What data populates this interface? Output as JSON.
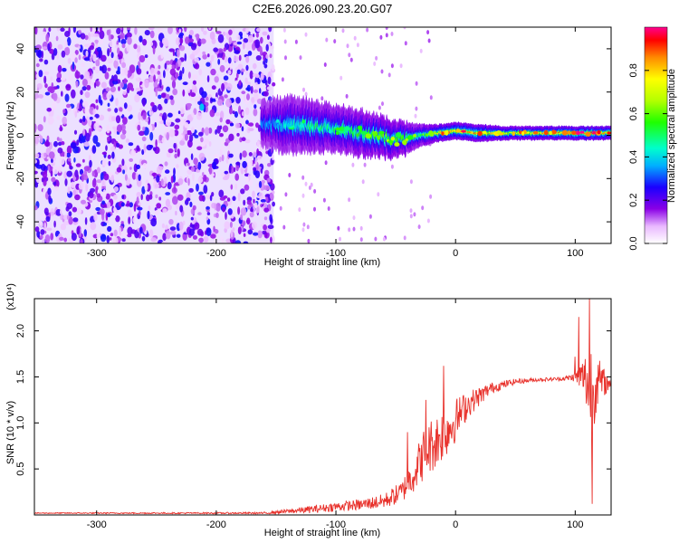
{
  "figure": {
    "title": "C2E6.2026.090.23.20.G07"
  },
  "chart_data": [
    {
      "type": "heatmap",
      "xlabel": "Height of straight line (km)",
      "ylabel": "Frequency (Hz)",
      "xlim": [
        -352,
        130
      ],
      "ylim": [
        -50,
        50
      ],
      "xticks": [
        -300,
        -200,
        -100,
        0,
        100
      ],
      "yticks": [
        -40,
        -20,
        0,
        20,
        40
      ],
      "noise_region": {
        "x_from": -352,
        "x_to": -152,
        "freq_from": -50,
        "freq_to": 50
      },
      "signal_track": {
        "x": [
          -160,
          -140,
          -120,
          -100,
          -80,
          -60,
          -45,
          -30,
          -15,
          0,
          20,
          40,
          60,
          80,
          100,
          115,
          130
        ],
        "center_hz": [
          5,
          5,
          4,
          3,
          1,
          -1,
          -2,
          0,
          1,
          2,
          1,
          1,
          1,
          1,
          1,
          1,
          1
        ],
        "half_width_hz": [
          4,
          5,
          4.5,
          4,
          4,
          3.5,
          3,
          2,
          1.5,
          1.5,
          1.5,
          1.2,
          1.2,
          1.2,
          1.2,
          1.2,
          1.2
        ],
        "peak_amplitude": [
          0.35,
          0.45,
          0.5,
          0.5,
          0.55,
          0.6,
          0.6,
          0.55,
          0.8,
          0.85,
          0.85,
          0.75,
          0.8,
          0.85,
          0.95,
          0.95,
          0.9
        ]
      },
      "colorbar": {
        "label": "Normalized spectral amplitude",
        "range": [
          0,
          1
        ],
        "ticks": [
          0.0,
          0.2,
          0.4,
          0.6,
          0.8
        ],
        "tick_labels": [
          "0.0",
          "0.2",
          "0.4",
          "0.6",
          "0.8"
        ]
      }
    },
    {
      "type": "line",
      "xlabel": "Height of straight line (km)",
      "ylabel": "SNR (10 * v/v)",
      "exponent_label": "(x10⁴)",
      "xlim": [
        -352,
        130
      ],
      "ylim": [
        0,
        2.35
      ],
      "xticks": [
        -300,
        -200,
        -100,
        0,
        100
      ],
      "yticks": [
        0.5,
        1.0,
        1.5,
        2.0
      ],
      "ytick_labels": [
        "0.5",
        "1.0",
        "1.5",
        "2.0"
      ],
      "series": [
        {
          "name": "SNR",
          "color": "#e8302a",
          "envelope": {
            "x": [
              -352,
              -200,
              -160,
              -140,
              -120,
              -100,
              -80,
              -60,
              -45,
              -35,
              -25,
              -15,
              -5,
              10,
              30,
              50,
              70,
              90,
              100,
              108,
              113,
              118,
              130
            ],
            "mean": [
              0.02,
              0.02,
              0.02,
              0.04,
              0.06,
              0.09,
              0.11,
              0.15,
              0.25,
              0.45,
              0.7,
              0.82,
              0.95,
              1.2,
              1.38,
              1.45,
              1.47,
              1.48,
              1.5,
              1.5,
              1.35,
              1.45,
              1.42
            ],
            "noise": [
              0.005,
              0.008,
              0.01,
              0.025,
              0.04,
              0.05,
              0.06,
              0.08,
              0.12,
              0.2,
              0.3,
              0.3,
              0.28,
              0.15,
              0.06,
              0.03,
              0.02,
              0.02,
              0.05,
              0.25,
              0.6,
              0.3,
              0.02
            ]
          },
          "spikes": [
            {
              "x": -40,
              "y": 0.9
            },
            {
              "x": -25,
              "y": 1.25
            },
            {
              "x": -10,
              "y": 1.62
            },
            {
              "x": 100,
              "y": 1.72
            },
            {
              "x": 103,
              "y": 2.15
            },
            {
              "x": 112,
              "y": 2.35
            },
            {
              "x": 114,
              "y": 0.12
            }
          ]
        }
      ]
    }
  ]
}
